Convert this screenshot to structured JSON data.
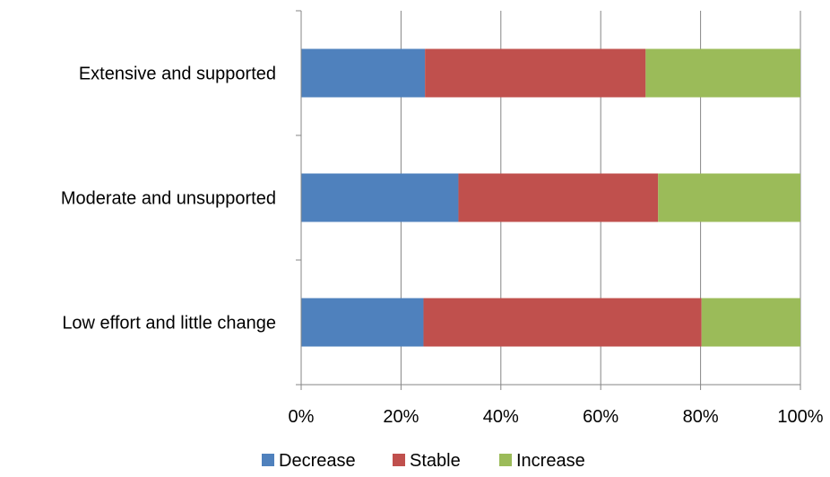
{
  "chart_data": {
    "type": "bar",
    "orientation": "horizontal",
    "stacked": "percent",
    "categories": [
      "Extensive and supported",
      "Moderate and unsupported",
      "Low effort and little change"
    ],
    "series": [
      {
        "name": "Decrease",
        "color": "#4F81BD",
        "values": [
          24.8,
          31.5,
          24.5
        ]
      },
      {
        "name": "Stable",
        "color": "#C0504D",
        "values": [
          44.2,
          40.0,
          55.7
        ]
      },
      {
        "name": "Increase",
        "color": "#9BBB59",
        "values": [
          31.0,
          28.5,
          19.8
        ]
      }
    ],
    "x_ticks": [
      "0%",
      "20%",
      "40%",
      "60%",
      "80%",
      "100%"
    ],
    "xlim": [
      0,
      100
    ],
    "grid": "vertical",
    "legend": "bottom"
  }
}
